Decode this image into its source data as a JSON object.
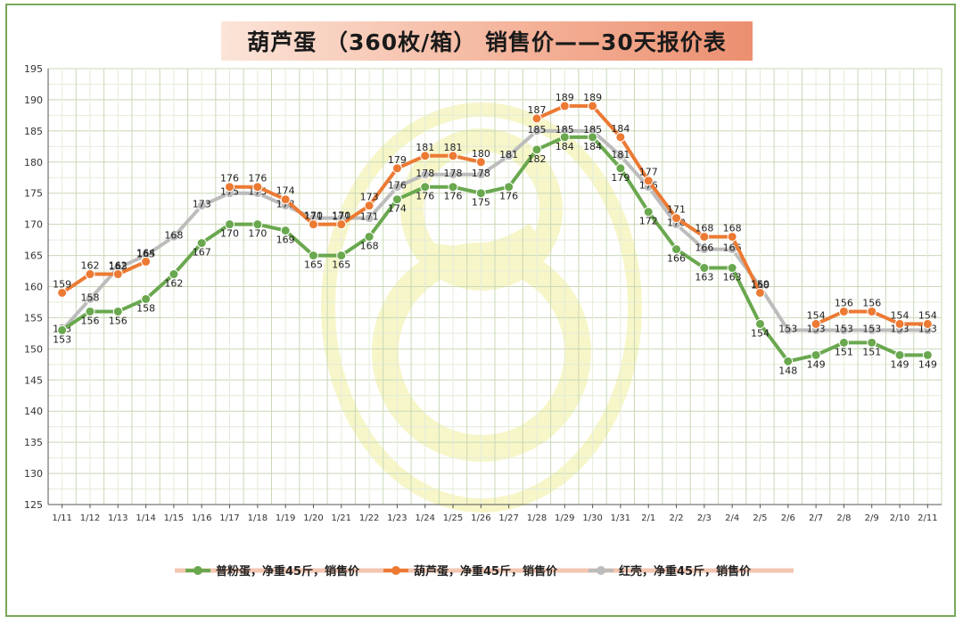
{
  "title": "葫芦蛋 （360枚/箱） 销售价——30天报价表",
  "colors": {
    "frame": "#7aa85a",
    "grid": "#c9d8b6",
    "watermark": "#f2f0b0"
  },
  "chart_data": {
    "type": "line",
    "title": "葫芦蛋 （360枚/箱） 销售价——30天报价表",
    "xlabel": "",
    "ylabel": "",
    "ylim": [
      125,
      195
    ],
    "yticks": [
      125,
      130,
      135,
      140,
      145,
      150,
      155,
      160,
      165,
      170,
      175,
      180,
      185,
      190,
      195
    ],
    "grid": true,
    "legend_position": "bottom",
    "categories": [
      "1/11",
      "1/12",
      "1/13",
      "1/14",
      "1/15",
      "1/16",
      "1/17",
      "1/18",
      "1/19",
      "1/20",
      "1/21",
      "1/22",
      "1/23",
      "1/24",
      "1/25",
      "1/26",
      "1/27",
      "1/28",
      "1/29",
      "1/30",
      "1/31",
      "2/1",
      "2/2",
      "2/3",
      "2/4",
      "2/5",
      "2/6",
      "2/7",
      "2/8",
      "2/9",
      "2/10",
      "2/11"
    ],
    "series": [
      {
        "name": "普粉蛋，净重45斤，销售价",
        "color": "#6aa84f",
        "values": [
          153,
          156,
          156,
          158,
          162,
          167,
          170,
          170,
          169,
          165,
          165,
          168,
          174,
          176,
          176,
          175,
          176,
          182,
          184,
          184,
          179,
          172,
          166,
          163,
          163,
          154,
          148,
          149,
          151,
          151,
          149,
          149
        ]
      },
      {
        "name": "葫芦蛋，净重45斤，销售价",
        "color": "#ec7a33",
        "values": [
          159,
          162,
          162,
          164,
          null,
          null,
          176,
          176,
          174,
          170,
          170,
          173,
          179,
          181,
          181,
          180,
          null,
          187,
          189,
          189,
          184,
          177,
          171,
          168,
          168,
          159,
          null,
          154,
          156,
          156,
          154,
          154
        ]
      },
      {
        "name": "红壳，净重45斤，销售价",
        "color": "#bcbcbc",
        "values": [
          153,
          158,
          163,
          165,
          168,
          173,
          175,
          175,
          173,
          171,
          171,
          171,
          176,
          178,
          178,
          178,
          181,
          185,
          185,
          185,
          181,
          176,
          170,
          166,
          166,
          160,
          153,
          153,
          153,
          153,
          153,
          153
        ]
      }
    ]
  }
}
